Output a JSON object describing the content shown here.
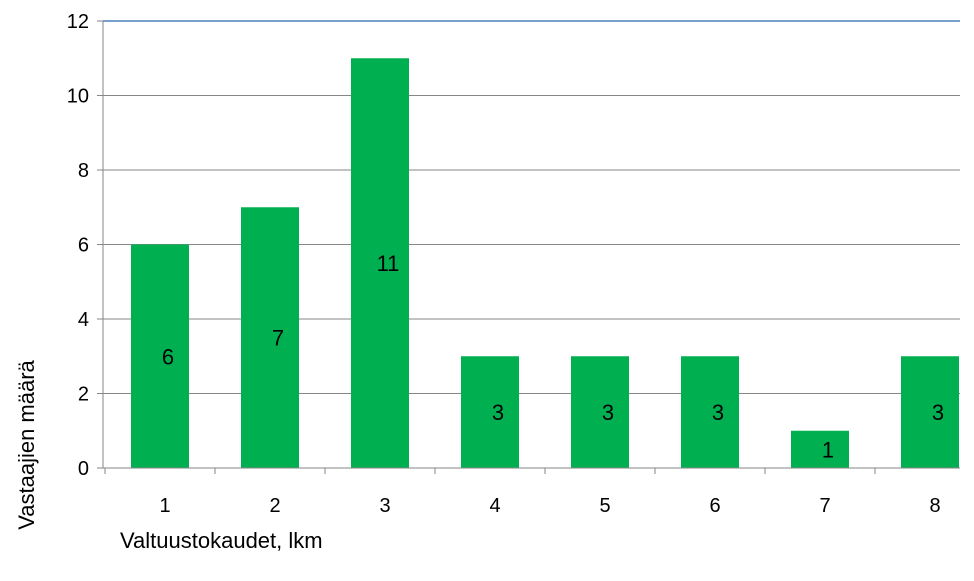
{
  "chart_data": {
    "type": "bar",
    "categories": [
      "1",
      "2",
      "3",
      "4",
      "5",
      "6",
      "7",
      "8"
    ],
    "values": [
      6,
      7,
      11,
      3,
      3,
      3,
      1,
      3
    ],
    "data_labels": [
      "6",
      "7",
      "11",
      "3",
      "3",
      "3",
      "1",
      "3"
    ],
    "title": "",
    "xlabel": "Valtuustokaudet, lkm",
    "ylabel": "Vastaajien määrä",
    "ylim": [
      0,
      12
    ],
    "yticks": [
      "0",
      "2",
      "4",
      "6",
      "8",
      "10",
      "12"
    ],
    "grid": true,
    "legend": "none",
    "colors": {
      "bar": "#00b050",
      "grid": "#868686",
      "top_border": "#4f81bd",
      "axis": "#868686"
    }
  }
}
